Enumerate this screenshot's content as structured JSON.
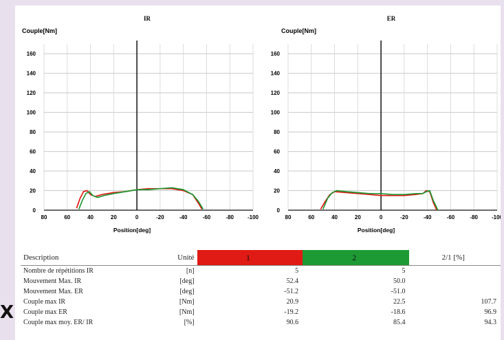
{
  "chart_data": [
    {
      "type": "line",
      "title": "IR",
      "ylabel": "Couple[Nm]",
      "xlabel": "Position[deg]",
      "x_reversed": true,
      "xlim": [
        80,
        -100
      ],
      "ylim": [
        0,
        170
      ],
      "x_ticks": [
        80,
        60,
        40,
        20,
        0,
        -20,
        -40,
        -60,
        -80,
        -100
      ],
      "x_tick_labels": [
        "80",
        "60",
        "40",
        "20",
        "0",
        "-20",
        "-40",
        "-60",
        "-80",
        "-100"
      ],
      "y_ticks": [
        0,
        20,
        40,
        60,
        80,
        100,
        120,
        140,
        160
      ],
      "y_tick_labels": [
        "0",
        "20",
        "40",
        "60",
        "80",
        "100",
        "120",
        "140",
        "160"
      ],
      "grid": true,
      "series": [
        {
          "color": "#e01a14",
          "x": [
            52,
            49,
            46,
            43,
            40,
            36,
            30,
            20,
            10,
            0,
            -10,
            -20,
            -30,
            -40,
            -48,
            -53,
            -56
          ],
          "y": [
            2,
            12,
            19,
            20,
            16,
            14,
            16,
            18,
            19,
            21,
            22,
            22,
            22,
            20,
            16,
            7,
            1
          ]
        },
        {
          "color": "#1e9a34",
          "x": [
            50,
            47,
            44,
            41,
            38,
            34,
            28,
            20,
            10,
            0,
            -10,
            -20,
            -30,
            -40,
            -48,
            -53,
            -57
          ],
          "y": [
            1,
            10,
            17,
            19,
            15,
            13,
            15,
            17,
            19,
            21,
            21,
            22,
            23,
            21,
            16,
            9,
            1
          ]
        }
      ]
    },
    {
      "type": "line",
      "title": "ER",
      "ylabel": "Couple[Nm]",
      "xlabel": "Position[deg]",
      "x_reversed": true,
      "xlim": [
        80,
        -100
      ],
      "ylim": [
        0,
        170
      ],
      "x_ticks": [
        80,
        60,
        40,
        20,
        0,
        -20,
        -40,
        -60,
        -80,
        -100
      ],
      "x_tick_labels": [
        "80",
        "60",
        "40",
        "20",
        "0",
        "-20",
        "-40",
        "-60",
        "-80",
        "-100"
      ],
      "y_ticks": [
        0,
        20,
        40,
        60,
        80,
        100,
        120,
        140,
        160
      ],
      "y_tick_labels": [
        "0",
        "20",
        "40",
        "60",
        "80",
        "100",
        "120",
        "140",
        "160"
      ],
      "grid": true,
      "series": [
        {
          "color": "#e01a14",
          "x": [
            52,
            48,
            44,
            40,
            30,
            20,
            10,
            0,
            -10,
            -20,
            -30,
            -36,
            -39,
            -42,
            -45,
            -48
          ],
          "y": [
            1,
            9,
            16,
            19,
            18,
            17,
            16,
            15,
            15,
            15,
            16,
            17,
            20,
            19,
            8,
            0
          ]
        },
        {
          "color": "#1e9a34",
          "x": [
            50,
            46,
            42,
            38,
            30,
            20,
            10,
            0,
            -10,
            -20,
            -30,
            -36,
            -39,
            -42,
            -45,
            -49
          ],
          "y": [
            1,
            12,
            18,
            20,
            19,
            18,
            17,
            17,
            16,
            16,
            17,
            17,
            19,
            20,
            10,
            0
          ]
        }
      ]
    }
  ],
  "table": {
    "headers": {
      "description": "Description",
      "unit": "Unité",
      "s1": "1",
      "s2": "2",
      "ratio": "2/1 [%]"
    },
    "rows": [
      {
        "description": "Nombre de répétitions IR",
        "unit": "[n]",
        "s1": "5",
        "s2": "5",
        "ratio": ""
      },
      {
        "description": "Mouvement Max. IR",
        "unit": "[deg]",
        "s1": "52.4",
        "s2": "50.0",
        "ratio": ""
      },
      {
        "description": "Mouvement Max. ER",
        "unit": "[deg]",
        "s1": "-51.2",
        "s2": "-51.0",
        "ratio": ""
      },
      {
        "description": "Couple max IR",
        "unit": "[Nm]",
        "s1": "20.9",
        "s2": "22.5",
        "ratio": "107.7"
      },
      {
        "description": "Couple max ER",
        "unit": "[Nm]",
        "s1": "-19.2",
        "s2": "-18.6",
        "ratio": "96.9"
      },
      {
        "description": "Couple max moy. ER/ IR",
        "unit": "[%]",
        "s1": "90.6",
        "s2": "85.4",
        "ratio": "94.3"
      }
    ]
  },
  "overlay_mark": "X",
  "colors": {
    "series1": "#e01a14",
    "series2": "#1e9a34",
    "background": "#e9e0ee"
  }
}
